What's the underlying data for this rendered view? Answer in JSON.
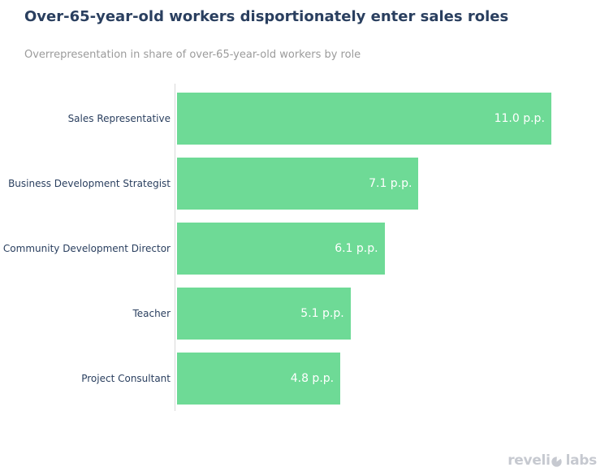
{
  "header": {
    "title": "Over-65-year-old workers disportionately enter sales roles",
    "subtitle": "Overrepresentation in share of over-65-year-old workers by role"
  },
  "chart_data": {
    "type": "bar",
    "orientation": "horizontal",
    "title": "Over-65-year-old workers disportionately enter sales roles",
    "subtitle": "Overrepresentation in share of over-65-year-old workers by role",
    "categories": [
      "Sales Representative",
      "Business Development Strategist",
      "Community Development Director",
      "Teacher",
      "Project Consultant"
    ],
    "values": [
      11.0,
      7.1,
      6.1,
      5.1,
      4.8
    ],
    "value_labels": [
      "11.0 p.p.",
      "7.1 p.p.",
      "6.1 p.p.",
      "5.1 p.p.",
      "4.8 p.p."
    ],
    "unit": "p.p.",
    "xlabel": "",
    "ylabel": "",
    "xlim": [
      0,
      11.5
    ],
    "grid": false,
    "legend": false,
    "bar_color": "#6eda96",
    "category_label_color": "#2a3f5f",
    "value_label_color": "#ffffff",
    "value_label_position": "inside-right"
  },
  "colors": {
    "title": "#2a3f5f",
    "subtitle": "#9b9b9b",
    "axis_line": "#d9d9d9",
    "brand": "#c6c9d0",
    "background": "#ffffff"
  },
  "brand": {
    "full_text": "revelio labs",
    "prefix": "reveli",
    "suffix": "labs"
  }
}
